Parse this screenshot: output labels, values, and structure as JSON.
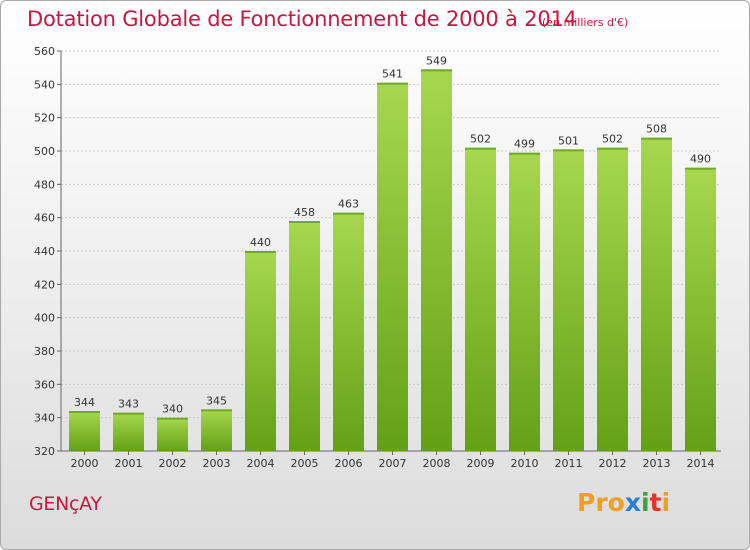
{
  "header": {
    "title": "Dotation Globale de Fonctionnement de 2000 à 2014",
    "subtitle": "(en milliers d'€)"
  },
  "footer": {
    "commune": "GENçAY",
    "logo": [
      "Pro",
      "x",
      "i",
      "t",
      "i"
    ]
  },
  "colors": {
    "bar": "#7fbf2a",
    "bar_light": "#a6d84f",
    "bar_dark": "#64a016",
    "title": "#c8173f"
  },
  "chart_data": {
    "type": "bar",
    "title": "Dotation Globale de Fonctionnement de 2000 à 2014",
    "subtitle": "(en milliers d'€)",
    "xlabel": "",
    "ylabel": "",
    "categories": [
      "2000",
      "2001",
      "2002",
      "2003",
      "2004",
      "2005",
      "2006",
      "2007",
      "2008",
      "2009",
      "2010",
      "2011",
      "2012",
      "2013",
      "2014"
    ],
    "values": [
      344,
      343,
      340,
      345,
      440,
      458,
      463,
      541,
      549,
      502,
      499,
      501,
      502,
      508,
      490
    ],
    "ylim": [
      320,
      560
    ],
    "yticks": [
      320,
      340,
      360,
      380,
      400,
      420,
      440,
      460,
      480,
      500,
      520,
      540,
      560
    ],
    "grid": true,
    "legend": "none"
  }
}
